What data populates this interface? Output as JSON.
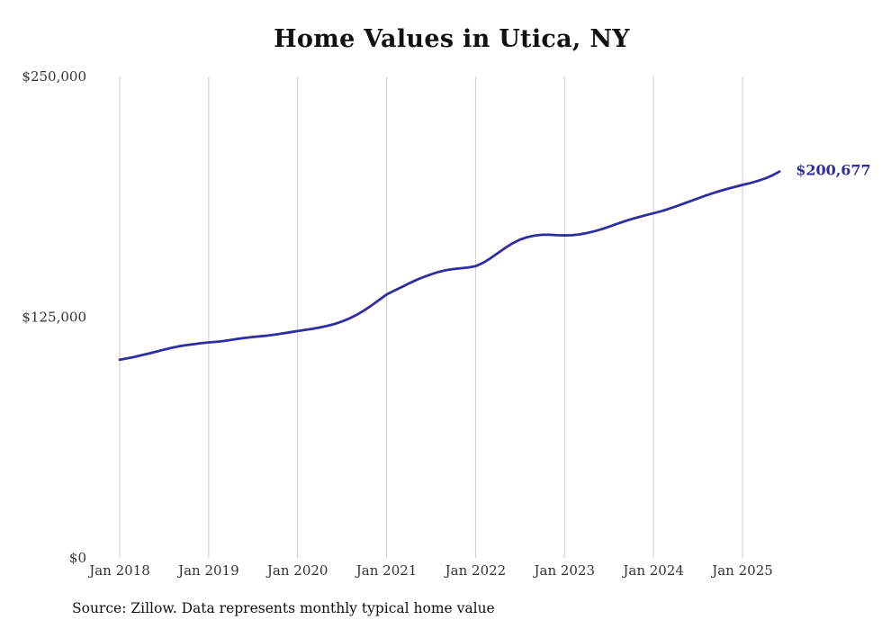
{
  "chart": {
    "title": "Home Values in Utica, NY",
    "source_note": "Source: Zillow. Data represents monthly typical home value"
  },
  "chart_data": {
    "type": "line",
    "title": "Home Values in Utica, NY",
    "series_name": "Monthly typical home value",
    "start_month": "Jan 2018",
    "end_month": "Jun 2025",
    "x_ticks": [
      "Jan 2018",
      "Jan 2019",
      "Jan 2020",
      "Jan 2021",
      "Jan 2022",
      "Jan 2023",
      "Jan 2024",
      "Jan 2025"
    ],
    "y_ticks": [
      {
        "value": 0,
        "label": "$0"
      },
      {
        "value": 125000,
        "label": "$125,000"
      },
      {
        "value": 250000,
        "label": "$250,000"
      }
    ],
    "ylim": [
      0,
      250000
    ],
    "grid": "vertical-only",
    "legend": "none",
    "line_color": "#2f2da0",
    "end_label": "$200,677",
    "end_value": 200677,
    "monthly_values": [
      102900,
      103600,
      104400,
      105300,
      106200,
      107200,
      108200,
      109100,
      109900,
      110500,
      111000,
      111500,
      111900,
      112200,
      112600,
      113200,
      113800,
      114300,
      114700,
      115100,
      115500,
      116000,
      116600,
      117200,
      117800,
      118400,
      119000,
      119700,
      120500,
      121500,
      122800,
      124400,
      126300,
      128600,
      131200,
      134000,
      136800,
      138700,
      140600,
      142500,
      144300,
      145900,
      147300,
      148500,
      149400,
      150000,
      150400,
      150800,
      151500,
      153200,
      155600,
      158300,
      161000,
      163400,
      165300,
      166600,
      167400,
      167800,
      167800,
      167600,
      167500,
      167600,
      168000,
      168700,
      169600,
      170700,
      172000,
      173400,
      174700,
      175900,
      177000,
      178000,
      179000,
      180000,
      181200,
      182500,
      183900,
      185300,
      186700,
      188100,
      189400,
      190600,
      191700,
      192700,
      193700,
      194600,
      195700,
      197000,
      198600,
      200677
    ],
    "source": "Source: Zillow. Data represents monthly typical home value"
  }
}
